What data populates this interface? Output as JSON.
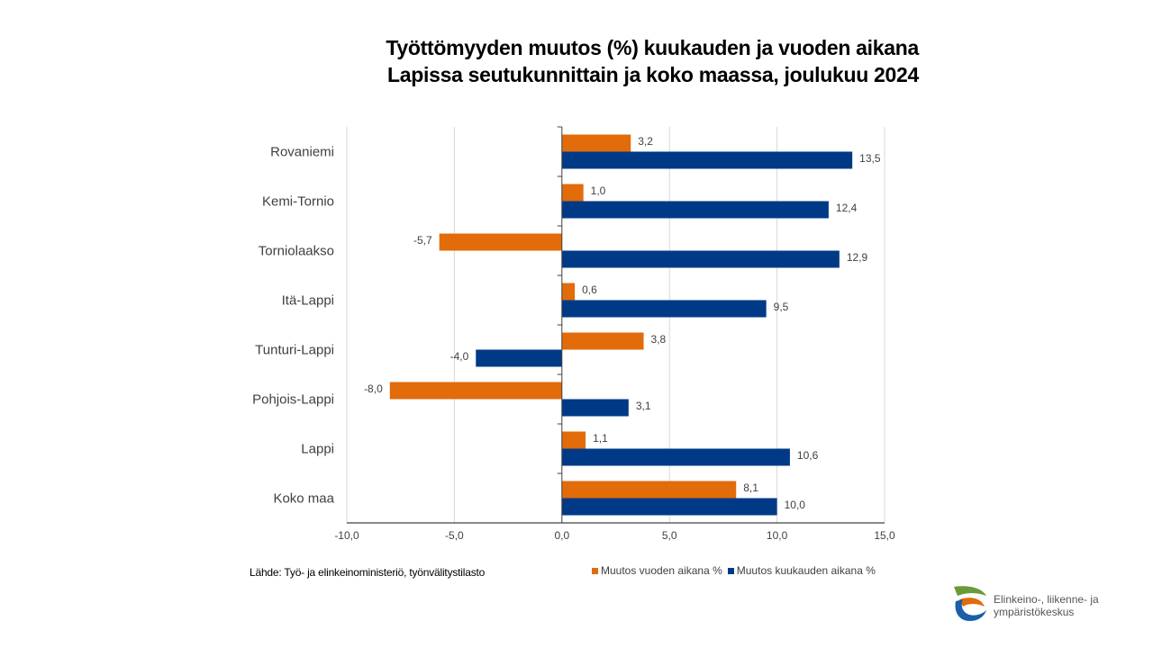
{
  "chart_data": {
    "type": "bar",
    "orientation": "horizontal",
    "title": "Työttömyyden muutos (%) kuukauden ja vuoden aikana",
    "subtitle": "Lapissa seutukunnittain ja koko maassa, joulukuu 2024",
    "categories": [
      "Rovaniemi",
      "Kemi-Tornio",
      "Torniolaakso",
      "Itä-Lappi",
      "Tunturi-Lappi",
      "Pohjois-Lappi",
      "Lappi",
      "Koko maa"
    ],
    "series": [
      {
        "name": "Muutos vuoden aikana %",
        "color": "#E26B0A",
        "values": [
          3.2,
          1.0,
          -5.7,
          0.6,
          3.8,
          -8.0,
          1.1,
          8.1
        ]
      },
      {
        "name": "Muutos kuukauden aikana %",
        "color": "#003A87",
        "values": [
          13.5,
          12.4,
          12.9,
          9.5,
          -4.0,
          3.1,
          10.6,
          10.0
        ]
      }
    ],
    "data_labels": [
      [
        "3,2",
        "1,0",
        "-5,7",
        "0,6",
        "3,8",
        "-8,0",
        "1,1",
        "8,1"
      ],
      [
        "13,5",
        "12,4",
        "12,9",
        "9,5",
        "-4,0",
        "3,1",
        "10,6",
        "10,0"
      ]
    ],
    "xlim": [
      -10,
      15
    ],
    "xticks": [
      -10,
      -5,
      0,
      5,
      10,
      15
    ],
    "xtick_labels": [
      "-10,0",
      "-5,0",
      "0,0",
      "5,0",
      "10,0",
      "15,0"
    ],
    "xlabel": "",
    "ylabel": "",
    "grid": "vertical",
    "legend": "bottom-right"
  },
  "source": "Lähde: Työ- ja elinkeinoministeriö, työnvälitystilasto",
  "logo": {
    "line1": "Elinkeino-, liikenne- ja",
    "line2": "ympäristökeskus"
  }
}
